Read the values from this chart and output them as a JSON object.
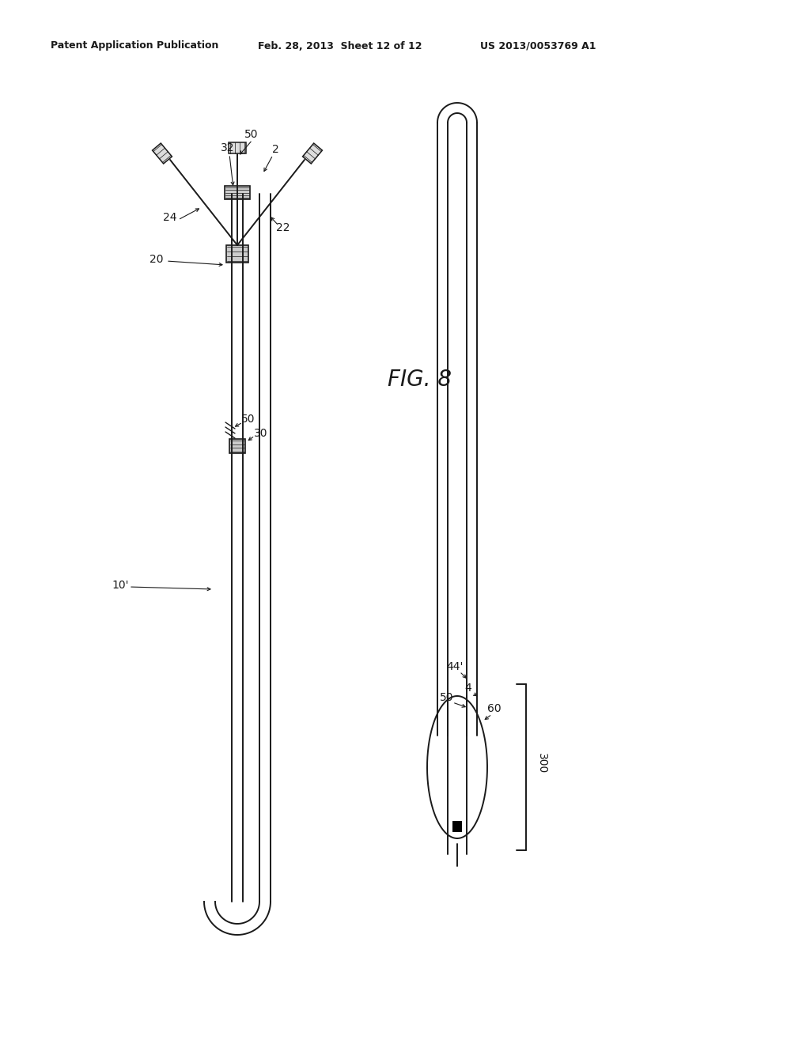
{
  "bg_color": "#ffffff",
  "line_color": "#1a1a1a",
  "header_left": "Patent Application Publication",
  "header_mid": "Feb. 28, 2013  Sheet 12 of 12",
  "header_right": "US 2013/0053769 A1",
  "fig_label": "FIG. 8",
  "lw": 1.4
}
